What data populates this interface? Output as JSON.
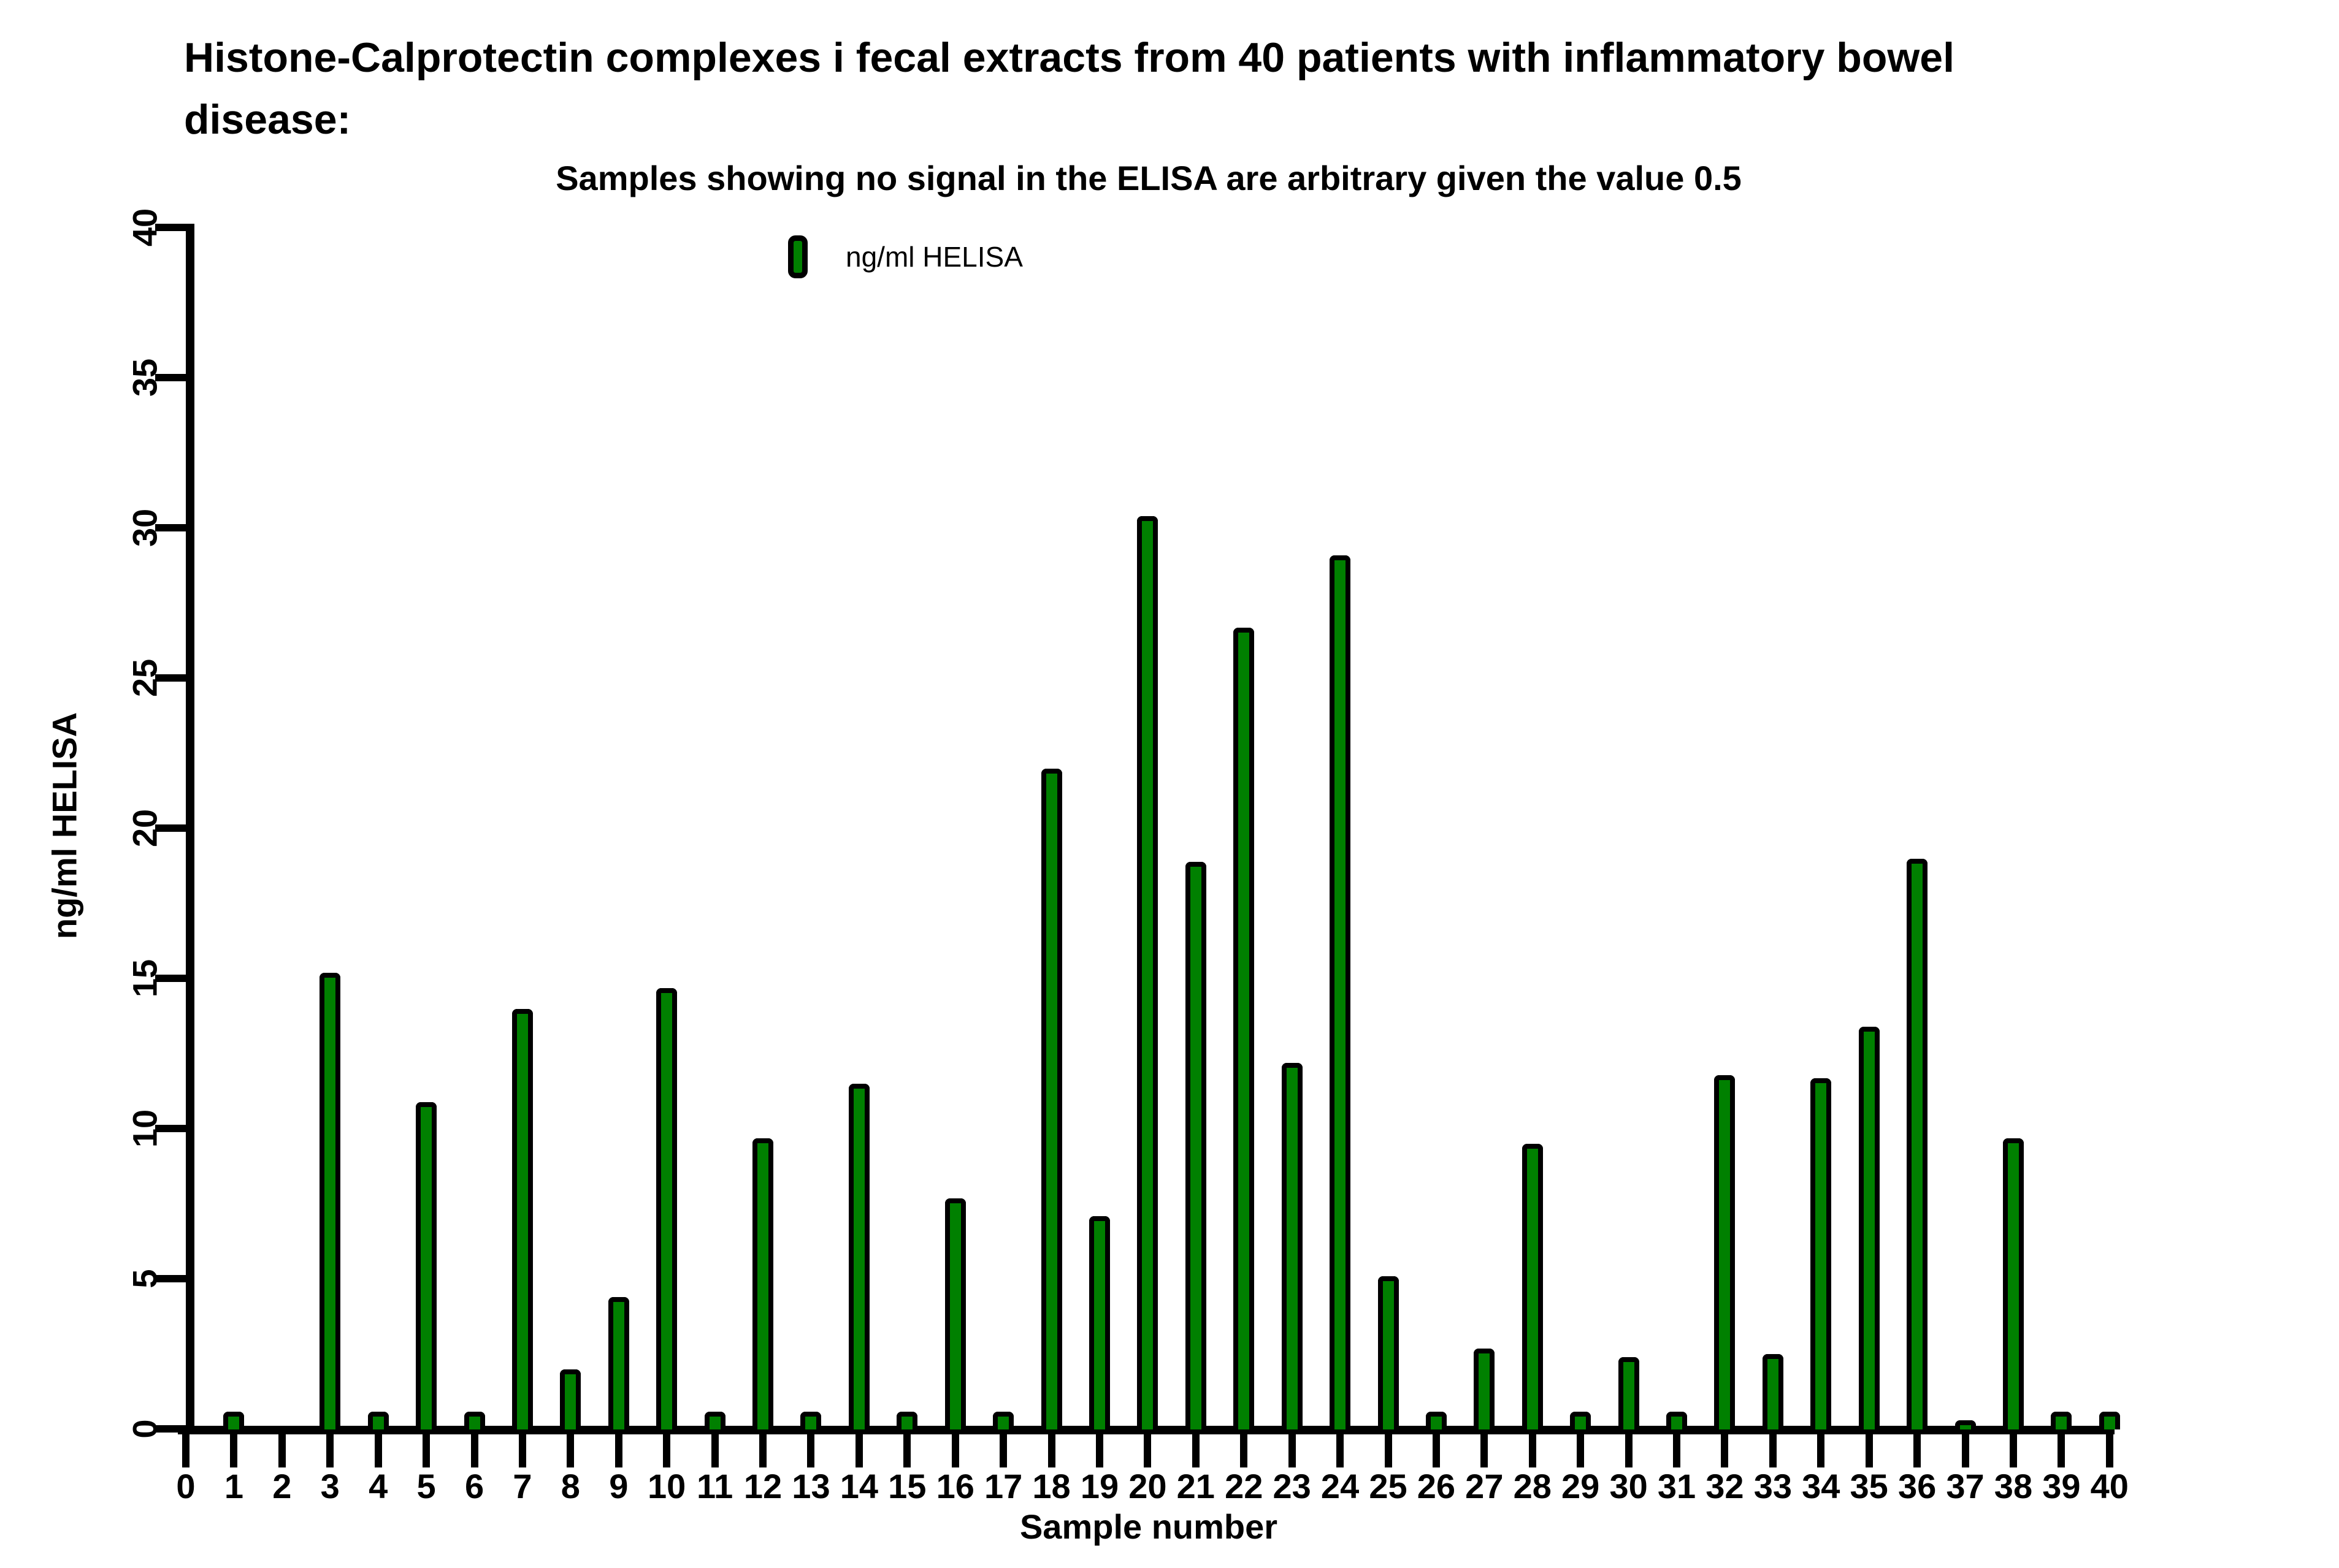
{
  "chart_data": {
    "type": "bar",
    "title_line1": "Histone-Calprotectin complexes i fecal extracts from 40 patients with inflammatory bowel",
    "title_line2": "disease:",
    "subtitle": "Samples showing no signal in the ELISA are arbitrary given the value 0.5",
    "legend": [
      {
        "label": "ng/ml HELISA",
        "color": "#008000"
      }
    ],
    "xlabel": "Sample number",
    "ylabel": "ng/ml HELISA",
    "ylim": [
      0,
      40
    ],
    "xlim": [
      0,
      40
    ],
    "grid": false,
    "legend_position": "top-center",
    "y_ticks": [
      0,
      5,
      10,
      15,
      20,
      25,
      30,
      35,
      40
    ],
    "x_ticks": [
      0,
      1,
      2,
      3,
      4,
      5,
      6,
      7,
      8,
      9,
      10,
      11,
      12,
      13,
      14,
      15,
      16,
      17,
      18,
      19,
      20,
      21,
      22,
      23,
      24,
      25,
      26,
      27,
      28,
      29,
      30,
      31,
      32,
      33,
      34,
      35,
      36,
      37,
      38,
      39,
      40
    ],
    "categories": [
      1,
      2,
      3,
      4,
      5,
      6,
      7,
      8,
      9,
      10,
      11,
      12,
      13,
      14,
      15,
      16,
      17,
      18,
      19,
      20,
      21,
      22,
      23,
      24,
      25,
      26,
      27,
      28,
      29,
      30,
      31,
      32,
      33,
      34,
      35,
      36,
      37,
      38,
      39,
      40
    ],
    "values": [
      0.5,
      0,
      15.1,
      0.5,
      10.8,
      0.5,
      13.9,
      1.9,
      4.3,
      14.6,
      0.5,
      9.6,
      0.5,
      11.4,
      0.5,
      7.6,
      0.5,
      21.9,
      7.0,
      30.3,
      18.8,
      26.6,
      12.1,
      29.0,
      5.0,
      0.5,
      2.6,
      9.4,
      0.5,
      2.3,
      0.5,
      11.7,
      2.4,
      11.6,
      13.3,
      18.9,
      0.2,
      9.6,
      0.5,
      0.5
    ],
    "bar_fill_color": "#008000",
    "bar_border_color": "#000000",
    "axis_color": "#000000"
  }
}
